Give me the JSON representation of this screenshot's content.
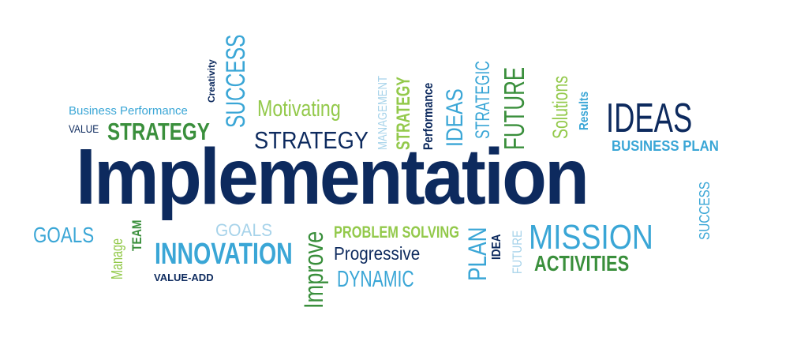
{
  "colors": {
    "navy": "#0d2a5e",
    "green": "#3a8f3c",
    "lime": "#93c94b",
    "sky": "#3aa6d6",
    "pale": "#a7d3ea"
  },
  "words": {
    "implementation": "Implementation",
    "business_performance": "Business Performance",
    "value": "VALUE",
    "strategy_green": "STRATEGY",
    "creativity": "Creativity",
    "success_top": "SUCCESS",
    "motivating": "Motivating",
    "strategy_navy": "STRATEGY",
    "management": "MANAGEMENT",
    "strategy_vertical": "STRATEGY",
    "performance": "Performance",
    "ideas_vertical": "IDEAS",
    "strategic": "STRATEGIC",
    "future_vertical": "FUTURE",
    "solutions": "Solutions",
    "results": "Results",
    "ideas_big": "IDEAS",
    "business_plan": "BUSINESS PLAN",
    "goals_left": "GOALS",
    "manage": "Manage",
    "team": "TEAM",
    "goals_pale": "GOALS",
    "innovation": "INNOVATION",
    "value_add": "VALUE-ADD",
    "improve": "Improve",
    "problem_solving": "PROBLEM SOLVING",
    "progressive": "Progressive",
    "dynamic": "DYNAMIC",
    "plan": "PLAN",
    "idea": "IDEA",
    "future_small": "FUTURE",
    "mission": "MISSION",
    "activities": "ACTIVITIES",
    "success_right": "SUCCESS"
  }
}
